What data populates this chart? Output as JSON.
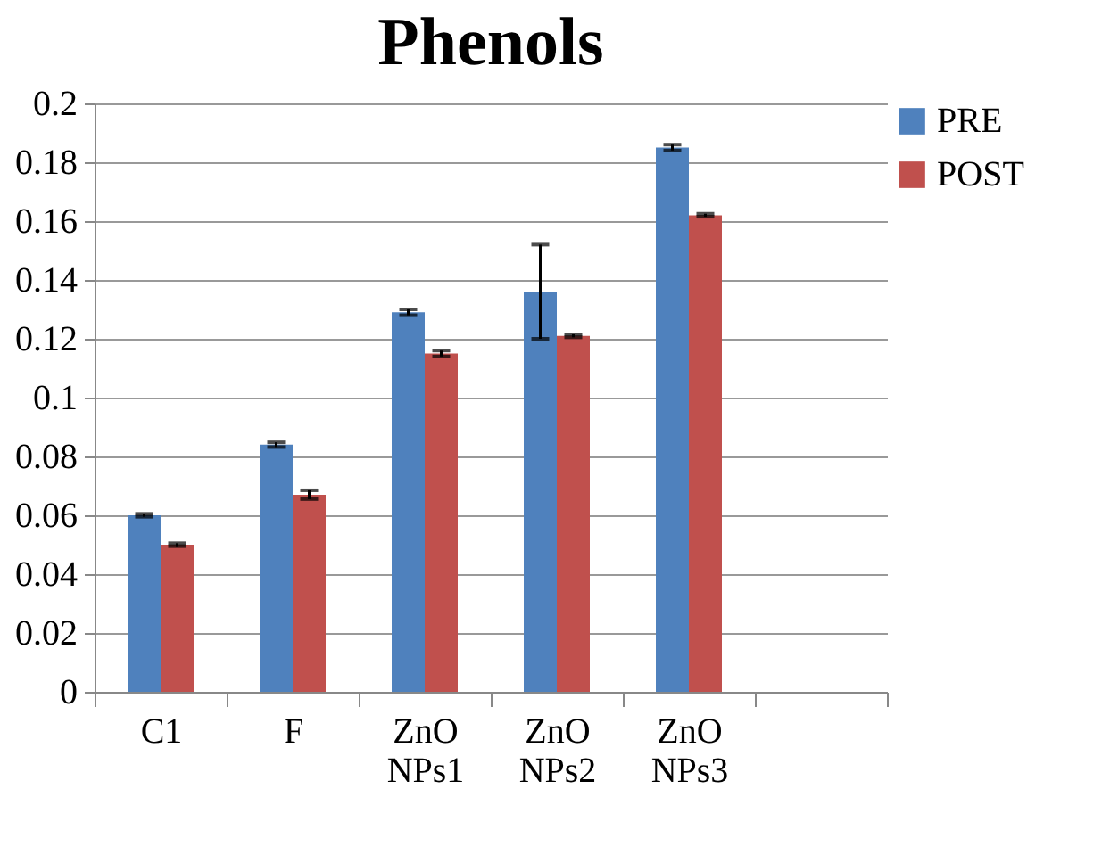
{
  "chart_data": {
    "type": "bar",
    "title": "Phenols",
    "categories": [
      "C1",
      "F",
      "ZnO NPs1",
      "ZnO NPs2",
      "ZnO NPs3",
      null
    ],
    "series": [
      {
        "name": "PRE",
        "color": "#4f81bd",
        "values": [
          0.06,
          0.084,
          0.129,
          0.136,
          0.185,
          null
        ],
        "errors": [
          0.0005,
          0.0008,
          0.001,
          0.016,
          0.001,
          null
        ]
      },
      {
        "name": "POST",
        "color": "#c0504d",
        "values": [
          0.05,
          0.067,
          0.115,
          0.121,
          0.162,
          null
        ],
        "errors": [
          0.0005,
          0.0015,
          0.001,
          0.0005,
          0.0005,
          null
        ]
      }
    ],
    "ylim": [
      0,
      0.2
    ],
    "yticks": [
      0,
      0.02,
      0.04,
      0.06,
      0.08,
      0.1,
      0.12,
      0.14,
      0.16,
      0.18,
      0.2
    ],
    "grid": "y",
    "legend": "top right"
  }
}
